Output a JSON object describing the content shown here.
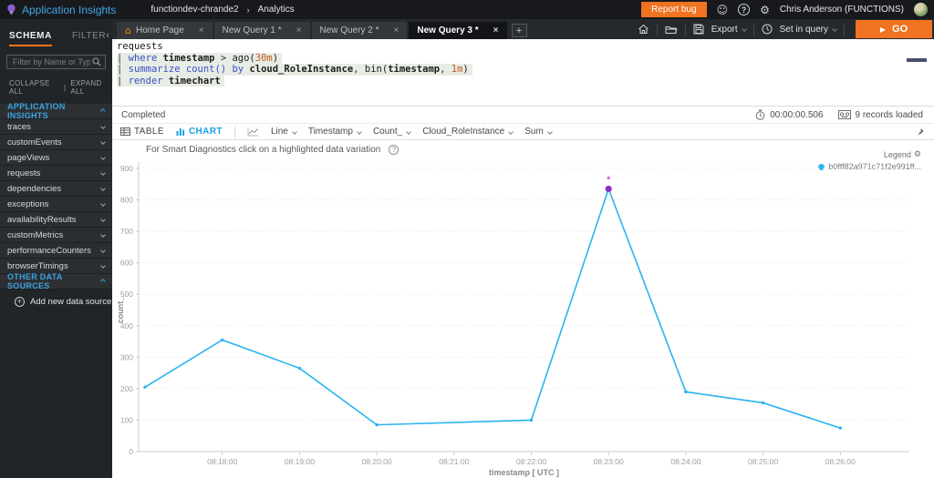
{
  "topbar": {
    "app_title": "Application Insights",
    "breadcrumb": {
      "resource": "functiondev-chrande2",
      "section": "Analytics"
    },
    "report_bug_label": "Report bug",
    "user_name": "Chris Anderson (FUNCTIONS)"
  },
  "tabbar": {
    "tabs": [
      {
        "label": "Home Page",
        "active": false,
        "home_icon": true
      },
      {
        "label": "New Query 1 *",
        "active": false,
        "home_icon": false
      },
      {
        "label": "New Query 2 *",
        "active": false,
        "home_icon": false
      },
      {
        "label": "New Query 3 *",
        "active": true,
        "home_icon": false
      }
    ],
    "export_label": "Export",
    "time_scope_label": "Set in query",
    "go_label": "GO"
  },
  "sidebar": {
    "schema_tab": "SCHEMA",
    "filter_tab": "FILTER",
    "filter_placeholder": "Filter by Name or Type...",
    "collapse_all": "COLLAPSE ALL",
    "expand_all": "EXPAND ALL",
    "sections": [
      {
        "label": "APPLICATION INSIGHTS",
        "items": [
          "traces",
          "customEvents",
          "pageViews",
          "requests",
          "dependencies",
          "exceptions",
          "availabilityResults",
          "customMetrics",
          "performanceCounters",
          "browserTimings"
        ]
      },
      {
        "label": "OTHER DATA SOURCES",
        "items": []
      }
    ],
    "add_data_source_label": "Add new data source"
  },
  "query": {
    "lines": [
      {
        "highlight": false,
        "tokens": [
          {
            "t": "requests",
            "c": "id"
          }
        ]
      },
      {
        "highlight": true,
        "tokens": [
          {
            "t": "| ",
            "c": "op"
          },
          {
            "t": "where ",
            "c": "kw"
          },
          {
            "t": "timestamp ",
            "c": "idb"
          },
          {
            "t": "> ",
            "c": "op"
          },
          {
            "t": "ago(",
            "c": "id"
          },
          {
            "t": "30m",
            "c": "lit"
          },
          {
            "t": ")",
            "c": "id"
          }
        ]
      },
      {
        "highlight": true,
        "tokens": [
          {
            "t": "| ",
            "c": "op"
          },
          {
            "t": "summarize ",
            "c": "kw"
          },
          {
            "t": "count()",
            "c": "kw"
          },
          {
            "t": " ",
            "c": "op"
          },
          {
            "t": "by ",
            "c": "kw"
          },
          {
            "t": "cloud_RoleInstance",
            "c": "idb"
          },
          {
            "t": ", ",
            "c": "op"
          },
          {
            "t": "bin(",
            "c": "id"
          },
          {
            "t": "timestamp",
            "c": "idb"
          },
          {
            "t": ", ",
            "c": "op"
          },
          {
            "t": "1m",
            "c": "lit"
          },
          {
            "t": ")",
            "c": "id"
          }
        ]
      },
      {
        "highlight": true,
        "tokens": [
          {
            "t": "| ",
            "c": "op"
          },
          {
            "t": "render ",
            "c": "kw"
          },
          {
            "t": "timechart",
            "c": "idb"
          }
        ]
      }
    ]
  },
  "status": {
    "state": "Completed",
    "duration": "00:00:00.506",
    "records": "9 records loaded"
  },
  "controls": {
    "table_label": "TABLE",
    "chart_label": "CHART",
    "dropdowns": [
      "Line",
      "Timestamp",
      "Count_",
      "Cloud_RoleInstance",
      "Sum"
    ]
  },
  "smart_text": "For Smart Diagnostics click on a highlighted data variation",
  "chart_data": {
    "type": "line",
    "title": "",
    "xlabel": "timestamp [ UTC ]",
    "ylabel": "count_",
    "ylim": [
      0,
      900
    ],
    "y_ticks": [
      0,
      100,
      200,
      300,
      400,
      500,
      600,
      700,
      800,
      900
    ],
    "x_tick_labels": [
      "08:18:00",
      "08:19:00",
      "08:20:00",
      "08:21:00",
      "08:22:00",
      "08:23:00",
      "08:24:00",
      "08:25:00",
      "08:26:00"
    ],
    "grid": "faint dashed horizontal",
    "legend": {
      "title": "Legend",
      "position": "top-right",
      "entries": [
        {
          "label": "b0fff82a971c71f2e991ff...",
          "color": "#29b4ef"
        }
      ]
    },
    "series": [
      {
        "name": "b0fff82a971c71f2e991ff...",
        "color": "#29b4ef",
        "points": [
          [
            "08:17:00",
            205
          ],
          [
            "08:18:00",
            355
          ],
          [
            "08:19:00",
            265
          ],
          [
            "08:20:00",
            85
          ],
          [
            "08:22:00",
            100
          ],
          [
            "08:23:00",
            835
          ],
          [
            "08:24:00",
            190
          ],
          [
            "08:25:00",
            155
          ],
          [
            "08:26:00",
            75
          ]
        ]
      }
    ],
    "highlight_point": {
      "x": "08:23:00",
      "y": 835,
      "color": "#8b2fc9",
      "star_color": "#e23ad0",
      "marker": "*"
    }
  },
  "colors": {
    "accent_orange": "#ef7320",
    "accent_blue": "#3da2e0",
    "series_blue": "#29b4ef",
    "highlight_purple": "#8b2fc9"
  },
  "icons": {
    "home": "⌂",
    "close": "×",
    "plus": "+",
    "smiley": "☺",
    "gear": "⚙",
    "help_q": "?",
    "play": "▶",
    "collapse_left": "‹",
    "breadcrumb_sep": "›",
    "pipe_sep": "|",
    "info_q": "?"
  }
}
